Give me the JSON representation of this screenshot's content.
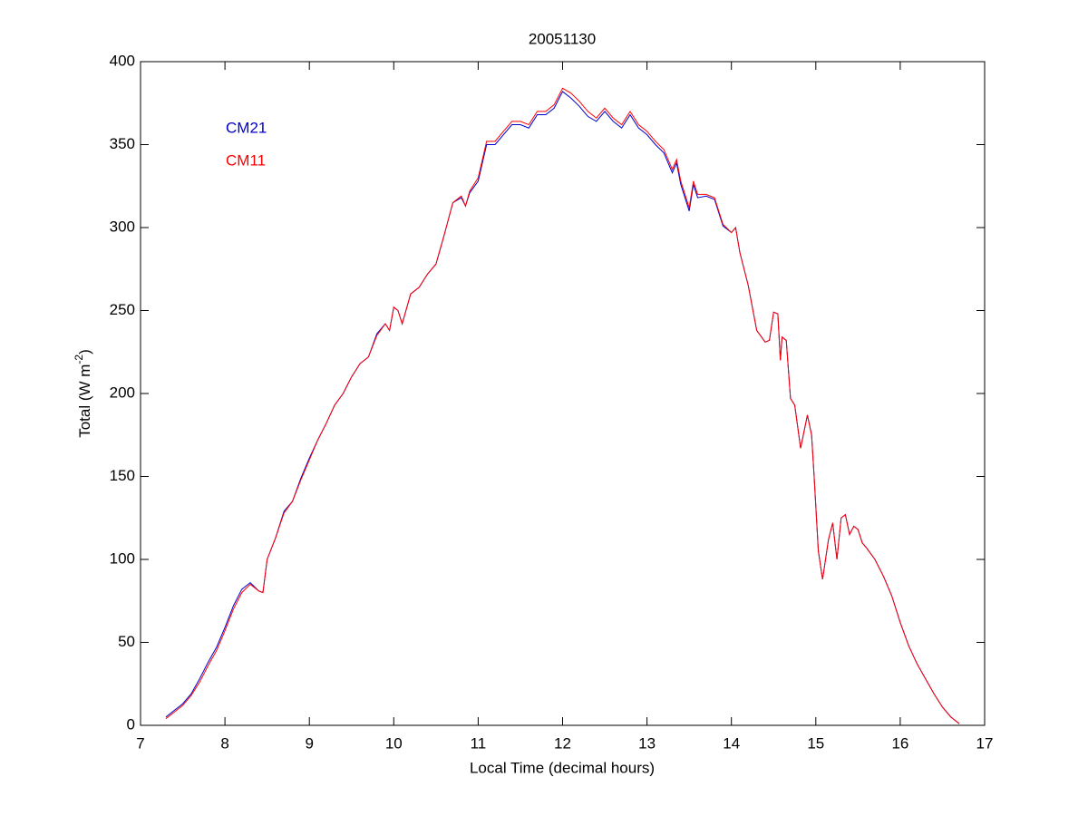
{
  "chart_data": {
    "type": "line",
    "title": "20051130",
    "xlabel": "Local Time (decimal hours)",
    "ylabel": [
      "Total (W m",
      "-2",
      ")"
    ],
    "x": [
      7.3,
      7.4,
      7.5,
      7.6,
      7.7,
      7.8,
      7.9,
      8.0,
      8.1,
      8.2,
      8.3,
      8.4,
      8.45,
      8.5,
      8.6,
      8.7,
      8.8,
      8.9,
      9.0,
      9.1,
      9.2,
      9.3,
      9.4,
      9.5,
      9.6,
      9.7,
      9.8,
      9.9,
      9.95,
      10.0,
      10.05,
      10.1,
      10.2,
      10.3,
      10.4,
      10.5,
      10.6,
      10.7,
      10.8,
      10.85,
      10.9,
      11.0,
      11.1,
      11.2,
      11.3,
      11.4,
      11.5,
      11.6,
      11.7,
      11.8,
      11.9,
      12.0,
      12.1,
      12.2,
      12.3,
      12.4,
      12.5,
      12.6,
      12.7,
      12.8,
      12.9,
      13.0,
      13.1,
      13.2,
      13.3,
      13.35,
      13.4,
      13.5,
      13.55,
      13.6,
      13.7,
      13.8,
      13.9,
      14.0,
      14.05,
      14.1,
      14.2,
      14.3,
      14.4,
      14.45,
      14.5,
      14.55,
      14.58,
      14.6,
      14.65,
      14.7,
      14.75,
      14.82,
      14.9,
      14.95,
      14.98,
      15.03,
      15.08,
      15.15,
      15.2,
      15.25,
      15.3,
      15.35,
      15.4,
      15.45,
      15.5,
      15.55,
      15.6,
      15.7,
      15.8,
      15.9,
      16.0,
      16.1,
      16.2,
      16.3,
      16.4,
      16.5,
      16.6,
      16.7
    ],
    "series": [
      {
        "name": "CM21",
        "color": "#0000cc",
        "values": [
          5,
          9,
          13,
          19,
          28,
          38,
          47,
          59,
          72,
          82,
          86,
          81,
          80,
          100,
          113,
          129,
          135,
          149,
          161,
          172,
          182,
          193,
          200,
          210,
          218,
          222,
          236,
          242,
          238,
          252,
          250,
          242,
          260,
          264,
          272,
          278,
          296,
          315,
          318,
          313,
          321,
          328,
          350,
          350,
          356,
          362,
          362,
          360,
          368,
          368,
          372,
          382,
          378,
          373,
          367,
          364,
          370,
          364,
          360,
          368,
          360,
          356,
          350,
          345,
          333,
          339,
          326,
          310,
          326,
          318,
          319,
          317,
          301,
          297,
          300,
          285,
          265,
          238,
          231,
          232,
          249,
          248,
          220,
          234,
          232,
          197,
          193,
          167,
          187,
          175,
          150,
          105,
          88,
          112,
          122,
          100,
          125,
          127,
          115,
          120,
          118,
          110,
          107,
          100,
          90,
          78,
          62,
          48,
          37,
          28,
          19,
          11,
          5,
          1
        ]
      },
      {
        "name": "CM11",
        "color": "#ff0000",
        "values": [
          4,
          8,
          12,
          18,
          26,
          36,
          45,
          57,
          70,
          80,
          85,
          81,
          80,
          100,
          113,
          128,
          135,
          148,
          160,
          172,
          182,
          193,
          200,
          210,
          218,
          222,
          235,
          242,
          238,
          252,
          250,
          242,
          260,
          264,
          272,
          278,
          296,
          315,
          319,
          313,
          322,
          330,
          352,
          352,
          358,
          364,
          364,
          362,
          370,
          370,
          374,
          384,
          381,
          376,
          370,
          366,
          372,
          366,
          362,
          370,
          362,
          358,
          352,
          347,
          335,
          341,
          328,
          312,
          328,
          320,
          320,
          318,
          302,
          297,
          300,
          285,
          265,
          238,
          231,
          232,
          249,
          248,
          220,
          234,
          232,
          197,
          193,
          167,
          187,
          175,
          150,
          105,
          88,
          112,
          122,
          100,
          125,
          127,
          115,
          120,
          118,
          110,
          107,
          100,
          90,
          78,
          62,
          48,
          37,
          28,
          19,
          11,
          5,
          1
        ]
      }
    ],
    "xlim": [
      7,
      17
    ],
    "xticks": [
      7,
      8,
      9,
      10,
      11,
      12,
      13,
      14,
      15,
      16,
      17
    ],
    "ylim": [
      0,
      400
    ],
    "yticks": [
      0,
      50,
      100,
      150,
      200,
      250,
      300,
      350,
      400
    ],
    "grid": false
  }
}
